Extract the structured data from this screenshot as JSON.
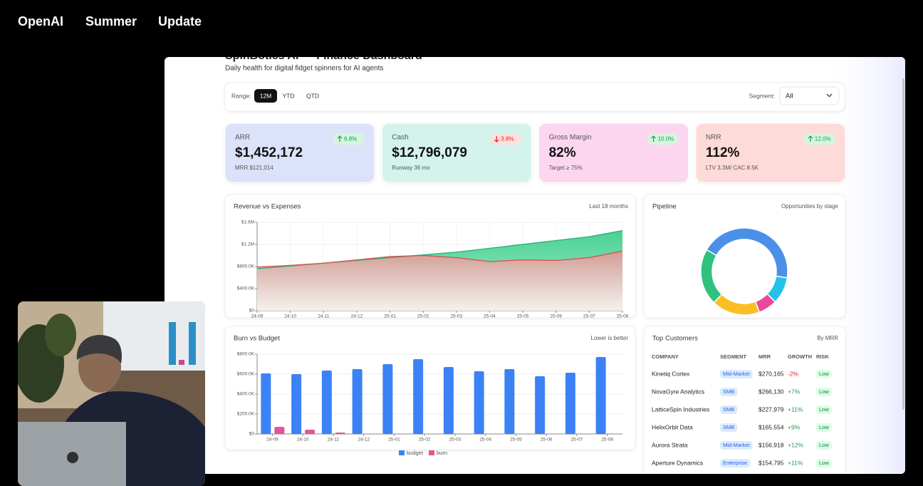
{
  "header": {
    "words": [
      "OpenAI",
      "Summer",
      "Update"
    ]
  },
  "dashboard": {
    "title": "SpinBotics AI — Finance Dashboard",
    "subtitle": "Daily health for digital fidget spinners for AI agents",
    "range": {
      "label": "Range:",
      "options": [
        "12M",
        "YTD",
        "QTD"
      ],
      "selected": 0
    },
    "segment": {
      "label": "Segment:",
      "value": "All"
    },
    "kpis": [
      {
        "label": "ARR",
        "value": "$1,452,172",
        "change": "6.8%",
        "direction": "up",
        "note": "MRR $121,014",
        "color": "#dde2fb"
      },
      {
        "label": "Cash",
        "value": "$12,796,079",
        "change": "3.8%",
        "direction": "down",
        "note": "Runway 36 mo",
        "color": "#d3f3ec"
      },
      {
        "label": "Gross Margin",
        "value": "82%",
        "change": "10.0%",
        "direction": "up",
        "note": "Target ≥ 75%",
        "color": "#fbd6ee"
      },
      {
        "label": "NRR",
        "value": "112%",
        "change": "12.0%",
        "direction": "up",
        "note": "LTV 3.3M/ CAC 8.5K",
        "color": "#fddbd8"
      }
    ],
    "customers": {
      "title": "Top Customers",
      "subtitle": "By MRR",
      "columns": [
        "COMPANY",
        "SEGMENT",
        "MRR",
        "GROWTH",
        "RISK"
      ],
      "rows": [
        [
          "Kinetiq Cortex",
          "Mid-Market",
          "$270,165",
          "-2%",
          "Low"
        ],
        [
          "NovaGyre Analytics",
          "SMB",
          "$266,130",
          "+7%",
          "Low"
        ],
        [
          "LatticeSpin Industries",
          "SMB",
          "$227,979",
          "+11%",
          "Low"
        ],
        [
          "HelixOrbit Data",
          "SMB",
          "$165,554",
          "+9%",
          "Low"
        ],
        [
          "Aurora Strata",
          "Mid-Market",
          "$156,918",
          "+12%",
          "Low"
        ],
        [
          "Aperture Dynamics",
          "Enterprise",
          "$154,795",
          "+11%",
          "Low"
        ]
      ]
    }
  },
  "chart_data": [
    {
      "type": "area",
      "title": "Revenue vs Expenses",
      "subtitle": "Last 18 months",
      "categories": [
        "24-09",
        "24-10",
        "24-11",
        "24-12",
        "25-01",
        "25-02",
        "25-03",
        "25-04",
        "25-05",
        "25-06",
        "25-07",
        "25-08"
      ],
      "series": [
        {
          "color": "#2fb37a",
          "values": [
            760000,
            810000,
            860000,
            910000,
            960000,
            1010000,
            1060000,
            1130000,
            1200000,
            1270000,
            1340000,
            1450000
          ]
        },
        {
          "color": "#d9534f",
          "values": [
            790000,
            820000,
            860000,
            920000,
            980000,
            1000000,
            960000,
            890000,
            920000,
            910000,
            960000,
            1080000
          ]
        }
      ],
      "ylim": [
        0,
        1600000
      ],
      "yticks": [
        {
          "value": 0,
          "label": "$0"
        },
        {
          "value": 400000,
          "label": "$400.0K"
        },
        {
          "value": 800000,
          "label": "$800.0K"
        },
        {
          "value": 1200000,
          "label": "$1.2M"
        },
        {
          "value": 1600000,
          "label": "$1.6M"
        }
      ],
      "grid": true
    },
    {
      "type": "donut",
      "title": "Pipeline",
      "subtitle": "Opportunities by stage",
      "values": [
        44,
        10,
        7,
        18,
        21
      ],
      "colors": [
        "#4a90e8",
        "#22c3e6",
        "#ec4899",
        "#fbbf24",
        "#2ec27e"
      ]
    },
    {
      "type": "bar",
      "title": "Burn vs Budget",
      "subtitle": "Lower is better",
      "categories": [
        "24-09",
        "24-10",
        "24-11",
        "24-12",
        "25-01",
        "25-02",
        "25-03",
        "25-04",
        "25-05",
        "25-06",
        "25-07",
        "25-08"
      ],
      "series": [
        {
          "name": "budget",
          "color": "#3b82f6",
          "values": [
            607000,
            600000,
            636000,
            650000,
            700000,
            750000,
            671000,
            629000,
            650000,
            579000,
            614000,
            771000
          ]
        },
        {
          "name": "burn",
          "color": "#e0559b",
          "values": [
            71000,
            43000,
            14000,
            0,
            0,
            0,
            0,
            0,
            0,
            0,
            0,
            0
          ]
        }
      ],
      "ylim": [
        0,
        800000
      ],
      "yticks": [
        {
          "value": 0,
          "label": "$0"
        },
        {
          "value": 200000,
          "label": "$200.0K"
        },
        {
          "value": 400000,
          "label": "$400.0K"
        },
        {
          "value": 600000,
          "label": "$600.0K"
        },
        {
          "value": 800000,
          "label": "$800.0K"
        }
      ],
      "grid": true
    }
  ]
}
